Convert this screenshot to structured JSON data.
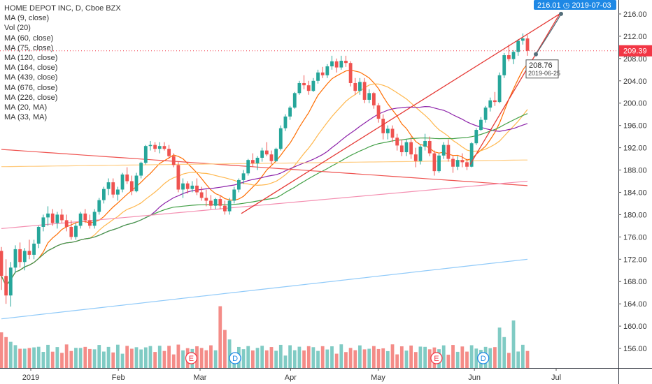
{
  "symbol_title": "HOME DEPOT INC, D, Cboe BZX",
  "indicators": [
    "MA (9, close)",
    "Vol (20)",
    "MA (60, close)",
    "MA (75, close)",
    "MA (120, close)",
    "MA (164, close)",
    "MA (439, close)",
    "MA (676, close)",
    "MA (226, close)",
    "MA (20, MA)",
    "MA (33, MA)"
  ],
  "price_tag": {
    "label": "209.39",
    "value": 209.39,
    "color": "#f23645"
  },
  "projection_tag": {
    "label": "216.01  ◷ 2019-07-03",
    "price": 216.01,
    "color": "#1e88e5"
  },
  "point_marker": {
    "price_label": "208.76",
    "date_label": "2019-06-25",
    "price": 208.76
  },
  "event_markers": [
    {
      "label": "E",
      "date": "2019-02-26",
      "color": "#f23645"
    },
    {
      "label": "D",
      "date": "2019-03-13",
      "color": "#1e88e5"
    },
    {
      "label": "E",
      "date": "2019-05-21",
      "color": "#f23645"
    },
    {
      "label": "D",
      "date": "2019-06-06",
      "color": "#1e88e5"
    }
  ],
  "colors": {
    "up": "#26a69a",
    "down": "#ef5350",
    "vol_up": "#80cbc4",
    "vol_down": "#f48c88"
  },
  "chart_data": {
    "type": "candlestick",
    "title": "HOME DEPOT INC, D, Cboe BZX",
    "y_axis": {
      "ticks": [
        156,
        160,
        164,
        168,
        172,
        176,
        180,
        184,
        188,
        192,
        196,
        200,
        204,
        208,
        212,
        216
      ],
      "range": [
        152.5,
        218.5
      ]
    },
    "x_axis": {
      "labels": [
        {
          "text": "2019",
          "date": "2019-01-02"
        },
        {
          "text": "Feb",
          "date": "2019-02-01"
        },
        {
          "text": "Mar",
          "date": "2019-03-01"
        },
        {
          "text": "Apr",
          "date": "2019-04-01"
        },
        {
          "text": "May",
          "date": "2019-05-01"
        },
        {
          "text": "Jun",
          "date": "2019-06-03"
        },
        {
          "text": "Jul",
          "date": "2019-07-01"
        }
      ]
    },
    "candles_approx": [
      [
        173.5,
        174.2,
        166.5,
        169.0
      ],
      [
        169.0,
        172.0,
        164.0,
        165.5
      ],
      [
        165.5,
        171.5,
        163.5,
        170.5
      ],
      [
        170.5,
        174.5,
        169.5,
        173.8
      ],
      [
        173.8,
        175.0,
        170.5,
        171.5
      ],
      [
        171.5,
        174.0,
        170.0,
        173.5
      ],
      [
        173.5,
        175.5,
        172.0,
        172.8
      ],
      [
        172.8,
        175.5,
        172.0,
        174.8
      ],
      [
        174.8,
        178.0,
        174.0,
        177.8
      ],
      [
        177.8,
        180.0,
        177.0,
        179.5
      ],
      [
        179.5,
        181.5,
        178.0,
        180.2
      ],
      [
        180.2,
        181.0,
        178.0,
        178.5
      ],
      [
        178.5,
        180.5,
        177.5,
        180.0
      ],
      [
        180.0,
        181.0,
        178.5,
        179.0
      ],
      [
        179.0,
        180.0,
        177.0,
        177.8
      ],
      [
        177.8,
        179.0,
        175.5,
        176.0
      ],
      [
        176.0,
        178.5,
        175.5,
        178.0
      ],
      [
        178.0,
        180.5,
        177.5,
        180.2
      ],
      [
        180.2,
        181.0,
        178.5,
        179.0
      ],
      [
        179.0,
        180.0,
        177.5,
        178.0
      ],
      [
        178.0,
        181.0,
        177.5,
        180.5
      ],
      [
        180.5,
        183.0,
        180.0,
        182.6
      ],
      [
        182.6,
        185.0,
        182.0,
        184.6
      ],
      [
        184.6,
        186.5,
        183.5,
        185.8
      ],
      [
        185.8,
        186.5,
        183.0,
        183.6
      ],
      [
        183.6,
        185.0,
        182.5,
        184.5
      ],
      [
        184.5,
        187.5,
        184.0,
        187.2
      ],
      [
        187.2,
        188.5,
        185.5,
        186.0
      ],
      [
        186.0,
        187.0,
        183.5,
        184.2
      ],
      [
        184.2,
        187.5,
        184.0,
        187.0
      ],
      [
        187.0,
        189.5,
        186.5,
        189.3
      ],
      [
        189.3,
        192.5,
        189.0,
        192.3
      ],
      [
        192.3,
        193.2,
        191.5,
        192.5
      ],
      [
        192.5,
        193.0,
        191.2,
        191.8
      ],
      [
        191.8,
        193.0,
        191.0,
        192.3
      ],
      [
        192.3,
        193.0,
        191.5,
        191.8
      ],
      [
        191.8,
        192.5,
        190.0,
        190.5
      ],
      [
        190.5,
        191.0,
        188.5,
        188.9
      ],
      [
        188.9,
        189.5,
        184.0,
        184.5
      ],
      [
        184.5,
        186.5,
        183.0,
        185.6
      ],
      [
        185.6,
        186.0,
        183.8,
        184.6
      ],
      [
        184.6,
        186.0,
        184.0,
        185.2
      ],
      [
        185.2,
        186.5,
        183.5,
        184.0
      ],
      [
        184.0,
        185.0,
        182.5,
        183.0
      ],
      [
        183.0,
        184.5,
        181.5,
        182.5
      ],
      [
        182.5,
        183.5,
        181.0,
        181.6
      ],
      [
        181.6,
        183.0,
        181.0,
        182.8
      ],
      [
        182.8,
        183.5,
        181.0,
        181.6
      ],
      [
        181.6,
        182.5,
        180.0,
        180.6
      ],
      [
        180.6,
        183.0,
        180.0,
        182.5
      ],
      [
        182.5,
        185.0,
        182.0,
        184.5
      ],
      [
        184.5,
        186.5,
        184.0,
        186.2
      ],
      [
        186.2,
        188.0,
        185.5,
        187.4
      ],
      [
        187.4,
        190.0,
        187.0,
        189.8
      ],
      [
        189.8,
        191.0,
        188.5,
        189.2
      ],
      [
        189.2,
        190.5,
        188.0,
        190.2
      ],
      [
        190.2,
        192.0,
        189.5,
        191.5
      ],
      [
        191.5,
        193.0,
        190.5,
        190.8
      ],
      [
        190.8,
        191.5,
        189.0,
        189.6
      ],
      [
        189.6,
        192.0,
        189.5,
        191.8
      ],
      [
        191.8,
        196.0,
        191.5,
        195.5
      ],
      [
        195.5,
        198.0,
        195.0,
        197.6
      ],
      [
        197.6,
        199.5,
        197.0,
        199.2
      ],
      [
        199.2,
        202.0,
        199.0,
        201.8
      ],
      [
        201.8,
        204.0,
        201.5,
        203.6
      ],
      [
        203.6,
        205.0,
        202.5,
        203.2
      ],
      [
        203.2,
        204.0,
        201.5,
        202.2
      ],
      [
        202.2,
        204.5,
        202.0,
        204.0
      ],
      [
        204.0,
        206.0,
        203.5,
        205.5
      ],
      [
        205.5,
        206.5,
        204.5,
        205.0
      ],
      [
        205.0,
        207.0,
        204.5,
        206.6
      ],
      [
        206.6,
        208.5,
        206.0,
        207.5
      ],
      [
        207.5,
        208.0,
        205.5,
        206.4
      ],
      [
        206.4,
        208.5,
        206.0,
        207.6
      ],
      [
        207.6,
        208.5,
        206.5,
        207.2
      ],
      [
        207.2,
        207.5,
        203.0,
        203.6
      ],
      [
        203.6,
        204.5,
        201.5,
        202.2
      ],
      [
        202.2,
        204.5,
        201.5,
        203.8
      ],
      [
        203.8,
        204.5,
        200.0,
        200.6
      ],
      [
        200.6,
        202.5,
        200.0,
        201.8
      ],
      [
        201.8,
        202.0,
        199.0,
        199.6
      ],
      [
        199.6,
        200.0,
        196.5,
        197.2
      ],
      [
        197.2,
        198.0,
        193.5,
        194.6
      ],
      [
        194.6,
        196.0,
        193.5,
        195.4
      ],
      [
        195.4,
        196.0,
        193.0,
        193.8
      ],
      [
        193.8,
        194.5,
        191.5,
        192.4
      ],
      [
        192.4,
        193.5,
        190.5,
        191.2
      ],
      [
        191.2,
        193.5,
        190.5,
        193.0
      ],
      [
        193.0,
        194.0,
        190.0,
        190.8
      ],
      [
        190.8,
        192.0,
        188.5,
        189.6
      ],
      [
        189.6,
        192.5,
        189.0,
        192.2
      ],
      [
        192.2,
        194.5,
        191.5,
        193.2
      ],
      [
        193.2,
        194.0,
        190.5,
        191.0
      ],
      [
        191.0,
        191.5,
        187.0,
        187.8
      ],
      [
        187.8,
        191.0,
        187.5,
        190.6
      ],
      [
        190.6,
        193.0,
        190.0,
        192.5
      ],
      [
        192.5,
        193.5,
        189.5,
        190.0
      ],
      [
        190.0,
        190.5,
        187.5,
        188.6
      ],
      [
        188.6,
        190.5,
        188.0,
        189.8
      ],
      [
        189.8,
        191.0,
        188.5,
        189.4
      ],
      [
        189.4,
        190.0,
        188.0,
        188.6
      ],
      [
        188.6,
        193.0,
        188.5,
        192.8
      ],
      [
        192.8,
        195.5,
        192.5,
        195.2
      ],
      [
        195.2,
        197.5,
        195.0,
        197.0
      ],
      [
        197.0,
        199.5,
        196.5,
        199.2
      ],
      [
        199.2,
        201.0,
        198.5,
        200.5
      ],
      [
        200.5,
        202.0,
        199.5,
        200.2
      ],
      [
        200.2,
        205.5,
        200.0,
        205.0
      ],
      [
        205.0,
        209.0,
        204.5,
        208.6
      ],
      [
        208.6,
        210.5,
        207.5,
        207.9
      ],
      [
        207.9,
        209.5,
        207.0,
        209.2
      ],
      [
        209.2,
        211.5,
        208.5,
        211.2
      ],
      [
        211.2,
        212.5,
        210.5,
        211.6
      ],
      [
        211.6,
        212.2,
        208.5,
        209.39
      ]
    ],
    "volume_scale_note": "volume bars shown at the bottom of the price pane without a separate axis"
  }
}
